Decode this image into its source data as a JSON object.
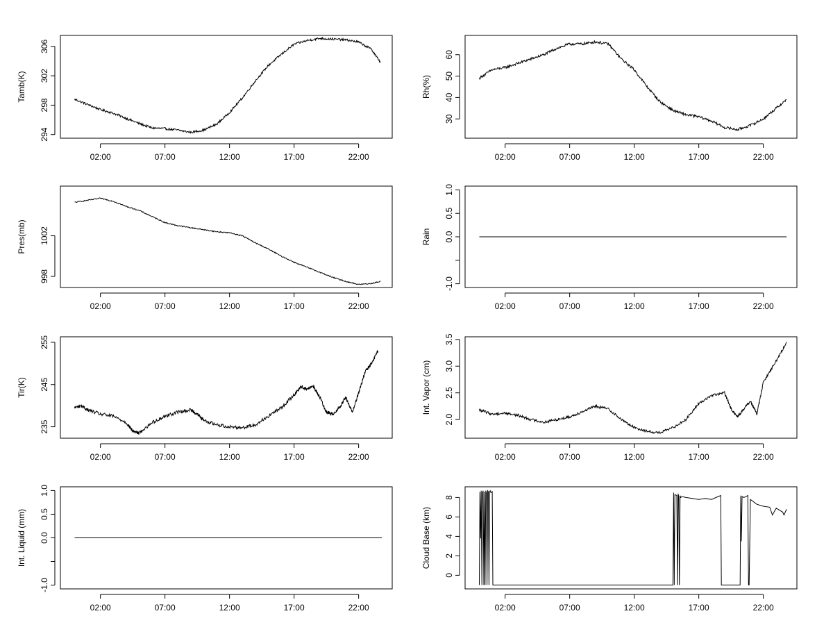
{
  "colors": {
    "background": "#ffffff",
    "ink": "#000000"
  },
  "chart_data": [
    {
      "type": "line",
      "ylabel": "Tamb(K)",
      "ylim": [
        293.5,
        307.5
      ],
      "yticks": [
        294,
        298,
        302,
        306
      ],
      "ytick_labels": [
        "294",
        "298",
        "302",
        "306"
      ],
      "xlim": [
        -1.1,
        24.6
      ],
      "xticks": [
        2,
        7,
        12,
        17,
        22
      ],
      "xtick_labels": [
        "02:00",
        "07:00",
        "12:00",
        "17:00",
        "22:00"
      ],
      "noise": 0.15,
      "x": [
        0,
        1,
        2,
        3,
        4,
        5,
        6,
        7,
        8,
        9,
        10,
        11,
        12,
        13,
        14,
        15,
        16,
        17,
        18,
        19,
        20,
        21,
        22,
        23,
        23.7
      ],
      "values": [
        298.8,
        298.1,
        297.4,
        296.9,
        296.2,
        295.5,
        294.9,
        294.8,
        294.6,
        294.3,
        294.6,
        295.4,
        297.0,
        299.0,
        301.3,
        303.4,
        304.9,
        306.3,
        306.8,
        307.1,
        307.0,
        306.9,
        306.6,
        305.6,
        303.8
      ]
    },
    {
      "type": "line",
      "ylabel": "Rh(%)",
      "ylim": [
        21,
        69
      ],
      "yticks": [
        30,
        40,
        50,
        60
      ],
      "ytick_labels": [
        "30",
        "40",
        "50",
        "60"
      ],
      "xlim": [
        -1.1,
        24.6
      ],
      "xticks": [
        2,
        7,
        12,
        17,
        22
      ],
      "xtick_labels": [
        "02:00",
        "07:00",
        "12:00",
        "17:00",
        "22:00"
      ],
      "noise": 0.6,
      "x": [
        0,
        1,
        2,
        3,
        4,
        5,
        6,
        7,
        8,
        9,
        10,
        11,
        12,
        13,
        14,
        15,
        16,
        17,
        18,
        19,
        20,
        21,
        22,
        23,
        23.8
      ],
      "values": [
        49,
        53,
        54,
        56,
        58,
        60,
        63,
        65,
        65,
        66,
        65,
        58,
        53,
        45,
        38,
        34,
        32,
        31,
        29,
        26,
        25,
        27,
        30,
        35,
        39
      ]
    },
    {
      "type": "line",
      "ylabel": "Pres(mb)",
      "ylim": [
        996.9,
        1006.9
      ],
      "yticks": [
        998,
        1002
      ],
      "ytick_labels": [
        "998",
        "1002"
      ],
      "xlim": [
        -1.1,
        24.6
      ],
      "xticks": [
        2,
        7,
        12,
        17,
        22
      ],
      "xtick_labels": [
        "02:00",
        "07:00",
        "12:00",
        "17:00",
        "22:00"
      ],
      "noise": 0.05,
      "x": [
        0,
        1,
        2,
        3,
        4,
        5,
        6,
        7,
        8,
        9,
        10,
        11,
        12,
        13,
        14,
        15,
        16,
        17,
        18,
        19,
        20,
        21,
        22,
        23,
        23.7
      ],
      "values": [
        1005.3,
        1005.5,
        1005.7,
        1005.4,
        1004.9,
        1004.5,
        1003.9,
        1003.3,
        1003.0,
        1002.8,
        1002.6,
        1002.4,
        1002.3,
        1002.0,
        1001.3,
        1000.7,
        1000.0,
        999.4,
        998.9,
        998.4,
        997.9,
        997.5,
        997.2,
        997.3,
        997.5
      ]
    },
    {
      "type": "line",
      "ylabel": "Rain",
      "ylim": [
        -1.08,
        1.08
      ],
      "yticks": [
        -1.0,
        -0.5,
        0.0,
        0.5,
        1.0
      ],
      "ytick_labels": [
        "-1.0",
        "",
        "0.0",
        "0.5",
        "1.0"
      ],
      "xlim": [
        -1.1,
        24.6
      ],
      "xticks": [
        2,
        7,
        12,
        17,
        22
      ],
      "xtick_labels": [
        "02:00",
        "07:00",
        "12:00",
        "17:00",
        "22:00"
      ],
      "noise": 0,
      "x": [
        0,
        23.8
      ],
      "values": [
        0,
        0
      ]
    },
    {
      "type": "line",
      "ylabel": "Tir(K)",
      "ylim": [
        232.3,
        256.3
      ],
      "yticks": [
        235,
        245,
        255
      ],
      "ytick_labels": [
        "235",
        "245",
        "255"
      ],
      "xlim": [
        -1.1,
        24.6
      ],
      "xticks": [
        2,
        7,
        12,
        17,
        22
      ],
      "xtick_labels": [
        "02:00",
        "07:00",
        "12:00",
        "17:00",
        "22:00"
      ],
      "noise": 0.4,
      "x": [
        0,
        0.5,
        1,
        2,
        3,
        4,
        4.5,
        5,
        6,
        7,
        8,
        9,
        9.5,
        10,
        11,
        12,
        13,
        14,
        15,
        16,
        17,
        17.5,
        18,
        18.5,
        19,
        19.5,
        20,
        20.5,
        21,
        21.5,
        22,
        22.5,
        23,
        23.5
      ],
      "values": [
        239.5,
        240,
        239,
        238,
        237.5,
        236,
        234,
        233.5,
        236,
        237.5,
        238.5,
        239,
        238,
        236.5,
        235.5,
        235,
        234.8,
        235.5,
        237.5,
        239.5,
        242.5,
        244.5,
        244,
        244.5,
        242,
        238.5,
        238,
        239.5,
        242,
        238.5,
        243,
        248,
        250,
        253
      ]
    },
    {
      "type": "line",
      "ylabel": "Int. Vapor (cm)",
      "ylim": [
        1.65,
        3.55
      ],
      "yticks": [
        2.0,
        2.5,
        3.0,
        3.5
      ],
      "ytick_labels": [
        "2.0",
        "2.5",
        "3.0",
        "3.5"
      ],
      "xlim": [
        -1.1,
        24.6
      ],
      "xticks": [
        2,
        7,
        12,
        17,
        22
      ],
      "xtick_labels": [
        "02:00",
        "07:00",
        "12:00",
        "17:00",
        "22:00"
      ],
      "noise": 0.025,
      "x": [
        0,
        1,
        2,
        3,
        4,
        5,
        6,
        7,
        8,
        9,
        10,
        11,
        12,
        13,
        14,
        15,
        16,
        17,
        18,
        19,
        19.5,
        20,
        20.5,
        21,
        21.5,
        22,
        23,
        23.8
      ],
      "values": [
        2.18,
        2.1,
        2.12,
        2.08,
        2.0,
        1.95,
        2.0,
        2.05,
        2.15,
        2.25,
        2.2,
        2.0,
        1.85,
        1.78,
        1.75,
        1.85,
        2.0,
        2.3,
        2.45,
        2.5,
        2.2,
        2.05,
        2.2,
        2.35,
        2.1,
        2.7,
        3.1,
        3.45
      ]
    },
    {
      "type": "line",
      "ylabel": "Int. Liquid (mm)",
      "ylim": [
        -1.08,
        1.08
      ],
      "yticks": [
        -1.0,
        -0.5,
        0.0,
        0.5,
        1.0
      ],
      "ytick_labels": [
        "-1.0",
        "",
        "0.0",
        "0.5",
        "1.0"
      ],
      "xlim": [
        -1.1,
        24.6
      ],
      "xticks": [
        2,
        7,
        12,
        17,
        22
      ],
      "xtick_labels": [
        "02:00",
        "07:00",
        "12:00",
        "17:00",
        "22:00"
      ],
      "noise": 0,
      "x": [
        0,
        23.8
      ],
      "values": [
        0,
        0
      ]
    },
    {
      "type": "line",
      "ylabel": "Cloud Base (km)",
      "ylim": [
        -1.4,
        9.1
      ],
      "yticks": [
        0,
        2,
        4,
        6,
        8
      ],
      "ytick_labels": [
        "0",
        "2",
        "4",
        "6",
        "8"
      ],
      "xlim": [
        -1.1,
        24.6
      ],
      "xticks": [
        2,
        7,
        12,
        17,
        22
      ],
      "xtick_labels": [
        "02:00",
        "07:00",
        "12:00",
        "17:00",
        "22:00"
      ],
      "noise": 0,
      "x": [
        0,
        0.05,
        0.1,
        0.15,
        0.2,
        0.25,
        0.3,
        0.35,
        0.4,
        0.45,
        0.5,
        0.55,
        0.6,
        0.65,
        0.7,
        0.75,
        0.8,
        0.85,
        0.9,
        1.0,
        1.05,
        15.0,
        15.05,
        15.1,
        15.15,
        15.3,
        15.35,
        15.4,
        15.45,
        15.5,
        15.55,
        15.6,
        15.7,
        16.0,
        16.5,
        17.0,
        17.5,
        18.0,
        18.5,
        18.7,
        18.75,
        18.8,
        19.5,
        20.0,
        20.2,
        20.25,
        20.3,
        20.35,
        20.5,
        20.8,
        20.85,
        20.9,
        21.0,
        21.5,
        22.0,
        22.5,
        22.7,
        23.0,
        23.5,
        23.6,
        23.8
      ],
      "values": [
        -1,
        8.6,
        3.8,
        8.7,
        -1,
        8.5,
        8.7,
        -1,
        8.6,
        -1,
        8.7,
        8.5,
        -1,
        8.7,
        8.6,
        -1,
        8.6,
        8.7,
        8.5,
        8.6,
        -1,
        -1,
        8.5,
        -1,
        8.3,
        8.2,
        -1,
        8.4,
        8.1,
        -1,
        8.2,
        8.0,
        8.1,
        8.0,
        7.9,
        7.8,
        7.9,
        7.8,
        8.1,
        8.2,
        -1,
        -1,
        -1,
        -1,
        -1,
        8.2,
        3.5,
        8.1,
        8.0,
        8.2,
        -1,
        -1,
        7.8,
        7.3,
        7.1,
        7.0,
        6.2,
        6.9,
        6.5,
        6.2,
        6.8
      ]
    }
  ]
}
